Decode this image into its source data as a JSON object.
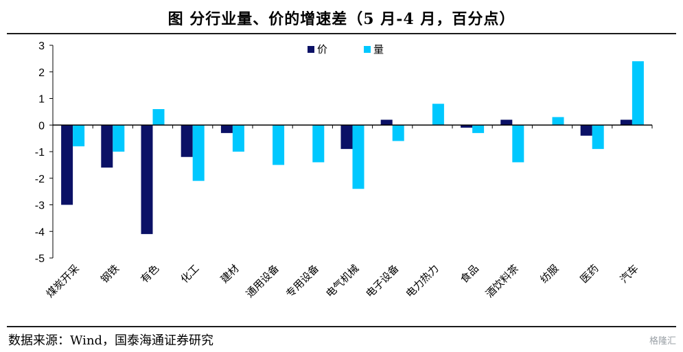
{
  "title": "图    分行业量、价的增速差（5 月-4 月，百分点）",
  "source": "数据来源：Wind，国泰海通证券研究",
  "watermark": "格隆汇",
  "chart_data": {
    "type": "bar",
    "categories": [
      "煤炭开采",
      "钢铁",
      "有色",
      "化工",
      "建材",
      "通用设备",
      "专用设备",
      "电气机械",
      "电子设备",
      "电力热力",
      "食品",
      "酒饮料茶",
      "纺服",
      "医药",
      "汽车"
    ],
    "series": [
      {
        "name": "价",
        "color": "#0b1166",
        "values": [
          -3.0,
          -1.6,
          -4.1,
          -1.2,
          -0.3,
          0,
          0,
          -0.9,
          0.2,
          0,
          -0.1,
          0.2,
          0,
          -0.4,
          0.2
        ]
      },
      {
        "name": "量",
        "color": "#00c8ff",
        "values": [
          -0.8,
          -1.0,
          0.6,
          -2.1,
          -1.0,
          -1.5,
          -1.4,
          -2.4,
          -0.6,
          0.8,
          -0.3,
          -1.4,
          0.3,
          -0.9,
          2.4
        ]
      }
    ],
    "ylim": [
      -5,
      3
    ],
    "yticks": [
      3,
      2,
      1,
      0,
      -1,
      -2,
      -3,
      -4,
      -5
    ],
    "legend_position": "top-center",
    "grid": false
  }
}
